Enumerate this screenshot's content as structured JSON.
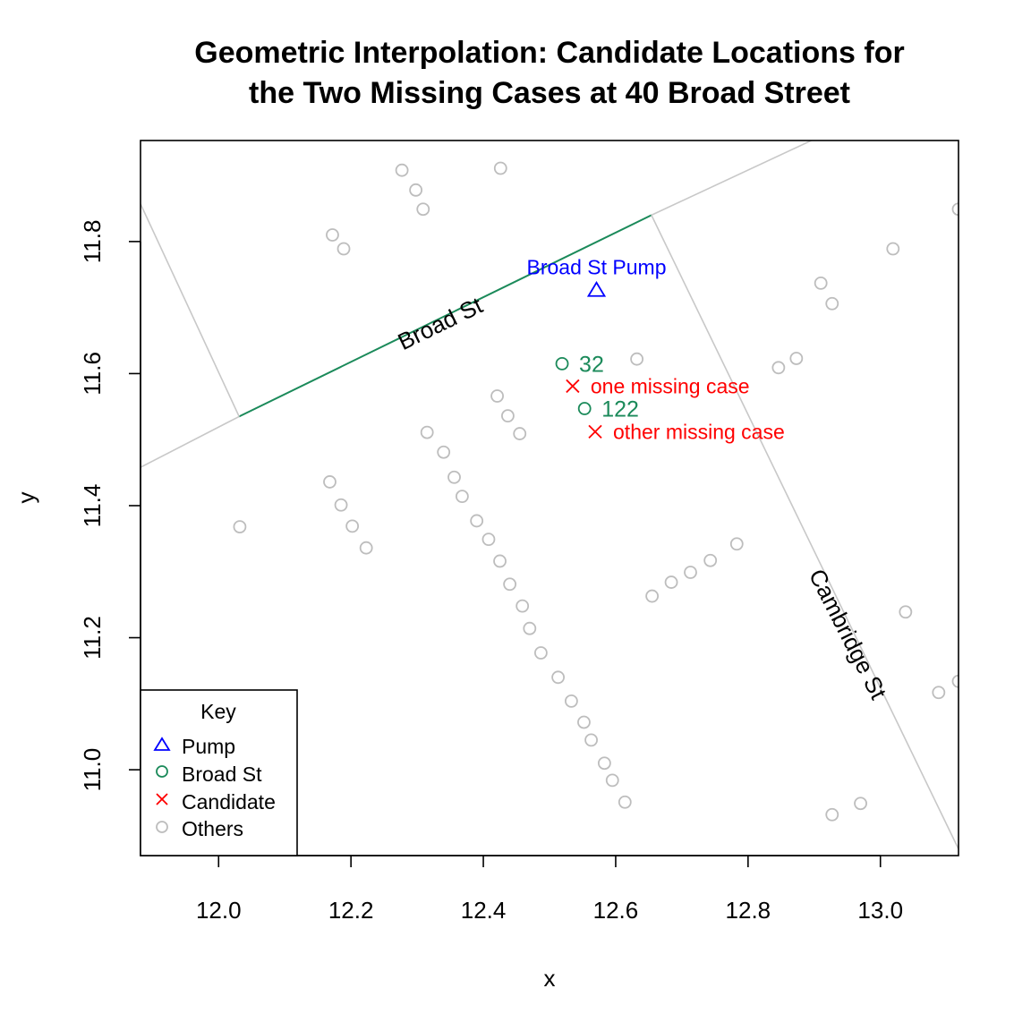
{
  "chart_data": {
    "type": "scatter",
    "title_lines": [
      "Geometric Interpolation: Candidate Locations for",
      "the Two Missing Cases at 40 Broad Street"
    ],
    "xlabel": "x",
    "ylabel": "y",
    "xlim": [
      11.882,
      13.118
    ],
    "ylim": [
      10.87,
      11.953
    ],
    "xticks": [
      12.0,
      12.2,
      12.4,
      12.6,
      12.8,
      13.0
    ],
    "xtick_labels": [
      "12.0",
      "12.2",
      "12.4",
      "12.6",
      "12.8",
      "13.0"
    ],
    "yticks": [
      11.0,
      11.2,
      11.4,
      11.6,
      11.8
    ],
    "ytick_labels": [
      "11.0",
      "11.2",
      "11.4",
      "11.6",
      "11.8"
    ],
    "colors": {
      "pump": "#0000ff",
      "broad_st": "#1b8a5a",
      "candidate": "#ff0000",
      "others": "#bdbdbd",
      "street_line": "#c8c8c8"
    },
    "streets": [
      {
        "name": "Broad St",
        "highlight": true,
        "points": [
          [
            12.031,
            11.535
          ],
          [
            12.654,
            11.84
          ]
        ]
      },
      {
        "name": "",
        "highlight": false,
        "points": [
          [
            11.882,
            11.458
          ],
          [
            12.031,
            11.535
          ]
        ]
      },
      {
        "name": "",
        "highlight": false,
        "points": [
          [
            12.654,
            11.84
          ],
          [
            12.9,
            11.955
          ]
        ]
      },
      {
        "name": "",
        "highlight": false,
        "points": [
          [
            11.882,
            11.857
          ],
          [
            12.031,
            11.535
          ]
        ]
      },
      {
        "name": "Cambridge St",
        "highlight": false,
        "points": [
          [
            12.654,
            11.84
          ],
          [
            13.118,
            10.88
          ]
        ]
      }
    ],
    "street_labels": [
      {
        "text": "Broad St",
        "x": 12.34,
        "y": 11.665,
        "angle": -26
      },
      {
        "text": "Cambridge St",
        "x": 12.94,
        "y": 11.2,
        "angle": 63
      }
    ],
    "pump": {
      "label": "Broad St Pump",
      "x": 12.571,
      "y": 11.727
    },
    "broad_st_cases": [
      {
        "label": "32",
        "x": 12.519,
        "y": 11.615
      },
      {
        "label": "122",
        "x": 12.553,
        "y": 11.547
      }
    ],
    "candidates": [
      {
        "label": "one missing case",
        "x": 12.535,
        "y": 11.581
      },
      {
        "label": "other missing case",
        "x": 12.569,
        "y": 11.512
      }
    ],
    "others": [
      [
        12.277,
        11.908
      ],
      [
        12.298,
        11.878
      ],
      [
        12.309,
        11.849
      ],
      [
        12.426,
        11.911
      ],
      [
        12.172,
        11.81
      ],
      [
        12.189,
        11.789
      ],
      [
        12.032,
        11.368
      ],
      [
        12.168,
        11.436
      ],
      [
        12.185,
        11.401
      ],
      [
        12.202,
        11.369
      ],
      [
        12.223,
        11.336
      ],
      [
        12.315,
        11.511
      ],
      [
        12.34,
        11.481
      ],
      [
        12.356,
        11.443
      ],
      [
        12.368,
        11.414
      ],
      [
        12.39,
        11.377
      ],
      [
        12.408,
        11.349
      ],
      [
        12.425,
        11.316
      ],
      [
        12.44,
        11.281
      ],
      [
        12.459,
        11.248
      ],
      [
        12.47,
        11.214
      ],
      [
        12.487,
        11.177
      ],
      [
        12.513,
        11.14
      ],
      [
        12.533,
        11.104
      ],
      [
        12.552,
        11.072
      ],
      [
        12.563,
        11.045
      ],
      [
        12.583,
        11.01
      ],
      [
        12.595,
        10.984
      ],
      [
        12.614,
        10.951
      ],
      [
        12.421,
        11.566
      ],
      [
        12.437,
        11.536
      ],
      [
        12.455,
        11.509
      ],
      [
        12.632,
        11.622
      ],
      [
        12.655,
        11.263
      ],
      [
        12.684,
        11.284
      ],
      [
        12.713,
        11.299
      ],
      [
        12.743,
        11.317
      ],
      [
        12.783,
        11.342
      ],
      [
        12.846,
        11.609
      ],
      [
        12.873,
        11.623
      ],
      [
        12.91,
        11.737
      ],
      [
        12.927,
        11.706
      ],
      [
        13.019,
        11.789
      ],
      [
        13.038,
        11.239
      ],
      [
        13.088,
        11.117
      ],
      [
        12.927,
        10.932
      ],
      [
        12.97,
        10.949
      ],
      [
        13.118,
        11.849
      ],
      [
        13.118,
        11.134
      ]
    ],
    "legend": {
      "title": "Key",
      "position": "bottom-left",
      "entries": [
        "Pump",
        "Broad St",
        "Candidate",
        "Others"
      ]
    }
  }
}
